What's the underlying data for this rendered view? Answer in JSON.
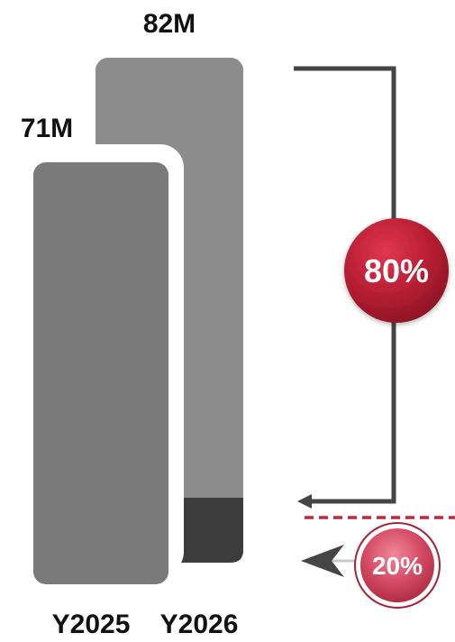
{
  "chart_data": {
    "type": "bar",
    "categories": [
      "Y2025",
      "Y2026"
    ],
    "values": [
      71,
      82
    ],
    "value_labels": [
      "71M",
      "82M"
    ],
    "units": "M",
    "title": "",
    "xlabel": "",
    "ylabel": "",
    "annotations": {
      "upper_share": "80%",
      "lower_share": "20%",
      "upper_share_value": 80,
      "lower_share_value": 20
    }
  },
  "colors": {
    "bar_front": "#7a7a7a",
    "bar_back": "#8c8c8c",
    "bar_base_segment": "#3c3c3c",
    "bracket": "#454545",
    "accent_red": "#b41c30",
    "accent_pink": "#c8354b",
    "dashed_line": "#c0283d",
    "text": "#111111"
  }
}
